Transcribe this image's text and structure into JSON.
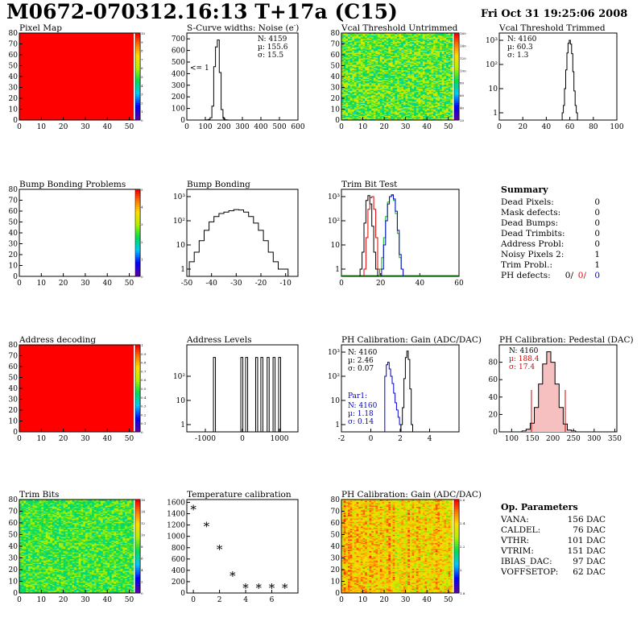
{
  "header": {
    "title": "M0672-070312.16:13 T+17a (C15)",
    "date": "Fri Oct 31 19:25:06 2008"
  },
  "colors": {
    "frame": "#000000",
    "pixelmap_fill": "#ff0000",
    "trim_black": "#000000",
    "trim_red": "#dd0000",
    "trim_green": "#00bb00",
    "trim_blue": "#0000cc",
    "stat_red": "#dd0000",
    "stat_blue": "#0000cc"
  },
  "panels": {
    "pixel_map": {
      "title": "Pixel Map",
      "x_ticks": [
        "0",
        "10",
        "20",
        "30",
        "40",
        "50"
      ],
      "y_ticks": [
        "0",
        "10",
        "20",
        "30",
        "40",
        "50",
        "60",
        "70",
        "80"
      ],
      "z_ticks": [
        "0",
        "1",
        "2",
        "3",
        "4",
        "5",
        "6",
        "7",
        "8",
        "9",
        "10"
      ]
    },
    "noise": {
      "title": "S-Curve widths: Noise (e",
      "title_sup": "-",
      "title_end": ")",
      "x_ticks": [
        "0",
        "100",
        "200",
        "300",
        "400",
        "500",
        "600"
      ],
      "y_ticks": [
        "0",
        "100",
        "200",
        "300",
        "400",
        "500",
        "600",
        "700"
      ],
      "stats": [
        "N: 4159",
        "µ: 155.6",
        "σ: 15.5"
      ],
      "note": "<= 1"
    },
    "vcal_untrimmed": {
      "title": "Vcal Threshold Untrimmed",
      "x_ticks": [
        "0",
        "10",
        "20",
        "30",
        "40",
        "50"
      ],
      "y_ticks": [
        "0",
        "10",
        "20",
        "30",
        "40",
        "50",
        "60",
        "70",
        "80"
      ],
      "z_ticks": [
        "20",
        "40",
        "60",
        "80",
        "100",
        "120",
        "140",
        "160"
      ]
    },
    "vcal_trimmed": {
      "title": "Vcal Threshold Trimmed",
      "x_ticks": [
        "0",
        "20",
        "40",
        "60",
        "80",
        "100"
      ],
      "y_ticks": [
        "1",
        "10",
        "10²",
        "10³"
      ],
      "stats": [
        "N: 4160",
        "µ: 60.3",
        "σ:  1.3"
      ]
    },
    "bump_problems": {
      "title": "Bump Bonding Problems",
      "x_ticks": [
        "0",
        "10",
        "20",
        "30",
        "40",
        "50"
      ],
      "y_ticks": [
        "0",
        "10",
        "20",
        "30",
        "40",
        "50",
        "60",
        "70",
        "80"
      ],
      "z_ticks": [
        "0",
        "1",
        "2",
        "3",
        "4",
        "5"
      ]
    },
    "bump_bonding": {
      "title": "Bump Bonding",
      "x_ticks": [
        "-50",
        "-40",
        "-30",
        "-20",
        "-10"
      ],
      "y_ticks": [
        "1",
        "10",
        "10²",
        "10³"
      ]
    },
    "trim_bit": {
      "title": "Trim Bit Test",
      "x_ticks": [
        "0",
        "20",
        "40",
        "60"
      ],
      "y_ticks": [
        "1",
        "10",
        "10²",
        "10³"
      ]
    },
    "summary": {
      "title": "Summary",
      "rows": [
        {
          "label": "Dead Pixels:",
          "value": "0"
        },
        {
          "label": "Mask defects:",
          "value": "0"
        },
        {
          "label": "Dead Bumps:",
          "value": "0"
        },
        {
          "label": "Dead Trimbits:",
          "value": "0"
        },
        {
          "label": "Address Probl:",
          "value": "0"
        },
        {
          "label": "Noisy Pixels 2:",
          "value": "1"
        },
        {
          "label": "Trim Probl.:",
          "value": "1"
        }
      ],
      "ph_label": "PH defects:",
      "ph_values": [
        "0/",
        "0/",
        "0"
      ]
    },
    "address_decoding": {
      "title": "Address decoding",
      "x_ticks": [
        "0",
        "10",
        "20",
        "30",
        "40",
        "50"
      ],
      "y_ticks": [
        "0",
        "10",
        "20",
        "30",
        "40",
        "50",
        "60",
        "70",
        "80"
      ],
      "z_ticks": [
        "0",
        "0.1",
        "0.2",
        "0.3",
        "0.4",
        "0.5",
        "0.6",
        "0.7",
        "0.8",
        "0.9",
        "1"
      ]
    },
    "address_levels": {
      "title": "Address Levels",
      "x_ticks": [
        "-1000",
        "0",
        "1000"
      ],
      "y_ticks": [
        "1",
        "10",
        "10²"
      ]
    },
    "ph_gain": {
      "title": "PH Calibration: Gain (ADC/DAC)",
      "x_ticks": [
        "-2",
        "0",
        "2",
        "4"
      ],
      "y_ticks": [
        "1",
        "10",
        "10²",
        "10³"
      ],
      "stats": [
        "N: 4160",
        "µ: 2.46",
        "σ: 0.07"
      ],
      "par_label": "Par1:",
      "par_stats": [
        "N: 4160",
        "µ: 1.18",
        "σ: 0.14"
      ]
    },
    "ph_pedestal": {
      "title": "PH Calibration: Pedestal (DAC)",
      "x_ticks": [
        "100",
        "150",
        "200",
        "250",
        "300",
        "350"
      ],
      "y_ticks": [
        "0",
        "20",
        "40",
        "60",
        "80"
      ],
      "stats": [
        "N: 4160",
        "µ: 188.4",
        "σ: 17.4"
      ]
    },
    "trim_bits": {
      "title": "Trim Bits",
      "x_ticks": [
        "0",
        "10",
        "20",
        "30",
        "40",
        "50"
      ],
      "y_ticks": [
        "0",
        "10",
        "20",
        "30",
        "40",
        "50",
        "60",
        "70",
        "80"
      ],
      "z_ticks": [
        "0",
        "2",
        "4",
        "6",
        "8",
        "10",
        "12",
        "14",
        "16"
      ]
    },
    "temperature": {
      "title": "Temperature calibration",
      "x_ticks": [
        "0",
        "2",
        "4",
        "6"
      ],
      "y_ticks": [
        "0",
        "200",
        "400",
        "600",
        "800",
        "1000",
        "1200",
        "1400",
        "1600"
      ]
    },
    "ph_gain_map": {
      "title": "PH Calibration: Gain (ADC/DAC)",
      "x_ticks": [
        "0",
        "10",
        "20",
        "30",
        "40",
        "50"
      ],
      "y_ticks": [
        "0",
        "10",
        "20",
        "30",
        "40",
        "50",
        "60",
        "70",
        "80"
      ],
      "z_ticks": [
        "1.8",
        "2",
        "2.2",
        "2.4",
        "2.6"
      ]
    },
    "op_params": {
      "title": "Op. Parameters",
      "rows": [
        {
          "label": "VANA:",
          "value": "156 DAC"
        },
        {
          "label": "CALDEL:",
          "value": "76 DAC"
        },
        {
          "label": "VTHR:",
          "value": "101 DAC"
        },
        {
          "label": "VTRIM:",
          "value": "151 DAC"
        },
        {
          "label": "IBIAS_DAC:",
          "value": "97 DAC"
        },
        {
          "label": "VOFFSETOP:",
          "value": "62 DAC"
        }
      ]
    }
  },
  "chart_data": [
    {
      "type": "heatmap",
      "panel": "pixel_map",
      "title": "Pixel Map",
      "xlim": [
        0,
        52
      ],
      "ylim": [
        0,
        80
      ],
      "zlim": [
        0,
        10
      ],
      "uniform_value": 10
    },
    {
      "type": "bar",
      "panel": "noise",
      "title": "S-Curve widths: Noise (e-)",
      "xlim": [
        0,
        600
      ],
      "ylim": [
        0,
        750
      ],
      "bins_x": [
        100,
        110,
        120,
        130,
        140,
        150,
        160,
        170,
        180,
        190,
        200,
        210,
        220,
        230
      ],
      "values": [
        0,
        2,
        5,
        20,
        120,
        460,
        630,
        690,
        410,
        90,
        15,
        3,
        1,
        0
      ]
    },
    {
      "type": "heatmap",
      "panel": "vcal_untrimmed",
      "title": "Vcal Threshold Untrimmed",
      "xlim": [
        0,
        52
      ],
      "ylim": [
        0,
        80
      ],
      "zlim": [
        0,
        170
      ],
      "typical_range": [
        60,
        120
      ]
    },
    {
      "type": "bar",
      "panel": "vcal_trimmed",
      "title": "Vcal Threshold Trimmed",
      "log_y": true,
      "xlim": [
        0,
        100
      ],
      "ylim": [
        0.5,
        2000
      ],
      "bins_x": [
        54,
        55,
        56,
        57,
        58,
        59,
        60,
        61,
        62,
        63,
        64,
        65,
        66,
        72,
        73
      ],
      "values": [
        1,
        2,
        10,
        60,
        300,
        750,
        1000,
        700,
        280,
        50,
        8,
        2,
        1,
        1,
        1
      ]
    },
    {
      "type": "heatmap",
      "panel": "bump_problems",
      "title": "Bump Bonding Problems",
      "xlim": [
        0,
        52
      ],
      "ylim": [
        0,
        80
      ],
      "zlim": [
        0,
        5
      ],
      "uniform_value": 0
    },
    {
      "type": "bar",
      "panel": "bump_bonding",
      "title": "Bump Bonding",
      "log_y": true,
      "xlim": [
        -50,
        -5
      ],
      "ylim": [
        0.5,
        2000
      ],
      "bins_x": [
        -48,
        -46,
        -44,
        -42,
        -40,
        -38,
        -36,
        -34,
        -32,
        -30,
        -28,
        -26,
        -24,
        -22,
        -20,
        -18,
        -16,
        -14,
        -12,
        -10
      ],
      "values": [
        2,
        5,
        15,
        40,
        90,
        150,
        200,
        230,
        260,
        290,
        280,
        230,
        150,
        80,
        40,
        15,
        5,
        2,
        1,
        1
      ]
    },
    {
      "type": "line",
      "panel": "trim_bit",
      "title": "Trim Bit Test",
      "log_y": true,
      "xlim": [
        0,
        60
      ],
      "ylim": [
        0.5,
        2000
      ],
      "series": [
        {
          "color_key": "trim_black",
          "x": [
            10,
            11,
            12,
            13,
            14,
            15,
            16,
            17,
            18
          ],
          "values": [
            1,
            5,
            80,
            700,
            1100,
            500,
            60,
            5,
            1
          ]
        },
        {
          "color_key": "trim_red",
          "x": [
            12,
            13,
            14,
            15,
            16,
            17,
            18,
            19
          ],
          "values": [
            1,
            20,
            300,
            900,
            1000,
            300,
            20,
            1
          ]
        },
        {
          "color_key": "trim_green",
          "x": [
            20,
            21,
            22,
            23,
            24,
            25,
            26,
            27,
            28,
            29,
            30,
            31
          ],
          "values": [
            1,
            3,
            20,
            150,
            600,
            1000,
            1100,
            700,
            200,
            30,
            3,
            1
          ]
        },
        {
          "color_key": "trim_blue",
          "x": [
            21,
            22,
            23,
            24,
            25,
            26,
            27,
            28,
            29,
            30,
            31
          ],
          "values": [
            1,
            10,
            100,
            500,
            1000,
            1200,
            800,
            250,
            40,
            4,
            1
          ]
        }
      ]
    },
    {
      "type": "heatmap",
      "panel": "address_decoding",
      "title": "Address decoding",
      "xlim": [
        0,
        52
      ],
      "ylim": [
        0,
        80
      ],
      "zlim": [
        0,
        1
      ],
      "uniform_value": 1
    },
    {
      "type": "bar",
      "panel": "address_levels",
      "title": "Address Levels",
      "log_y": true,
      "xlim": [
        -1500,
        1500
      ],
      "ylim": [
        0.5,
        2000
      ],
      "peaks_x": [
        -760,
        -20,
        110,
        380,
        520,
        690,
        850,
        1000
      ],
      "values": [
        600,
        600,
        600,
        600,
        600,
        600,
        600,
        600
      ]
    },
    {
      "type": "line",
      "panel": "ph_gain",
      "title": "PH Calibration: Gain (ADC/DAC)",
      "log_y": true,
      "xlim": [
        -2,
        6
      ],
      "ylim": [
        0.5,
        2000
      ],
      "series": [
        {
          "name": "Par1:",
          "color_key": "stat_blue",
          "x": [
            1.0,
            1.1,
            1.2,
            1.3,
            1.4,
            1.5,
            1.6,
            1.7,
            1.8,
            1.9,
            2.0
          ],
          "values": [
            100,
            300,
            380,
            200,
            100,
            50,
            20,
            8,
            4,
            2,
            1
          ]
        },
        {
          "color_key": "trim_black",
          "x": [
            2.1,
            2.2,
            2.3,
            2.4,
            2.5,
            2.6,
            2.7,
            2.8
          ],
          "values": [
            1,
            5,
            80,
            600,
            1100,
            500,
            30,
            1
          ]
        }
      ]
    },
    {
      "type": "bar",
      "panel": "ph_pedestal",
      "title": "PH Calibration: Pedestal (DAC)",
      "xlim": [
        70,
        355
      ],
      "ylim": [
        0,
        100
      ],
      "bins_x": [
        130,
        140,
        150,
        160,
        170,
        180,
        190,
        200,
        210,
        220,
        230,
        240,
        250
      ],
      "values": [
        1,
        3,
        10,
        28,
        55,
        78,
        92,
        80,
        55,
        28,
        9,
        2,
        1
      ],
      "markers_x": [
        148,
        230
      ]
    },
    {
      "type": "heatmap",
      "panel": "trim_bits",
      "title": "Trim Bits",
      "xlim": [
        0,
        52
      ],
      "ylim": [
        0,
        80
      ],
      "zlim": [
        0,
        16
      ],
      "typical_range": [
        6,
        10
      ]
    },
    {
      "type": "scatter",
      "panel": "temperature",
      "title": "Temperature calibration",
      "xlim": [
        -0.5,
        8
      ],
      "ylim": [
        0,
        1650
      ],
      "x": [
        0,
        1,
        2,
        3,
        4,
        5,
        6,
        7
      ],
      "y": [
        1470,
        1170,
        770,
        300,
        85,
        85,
        85,
        85
      ]
    },
    {
      "type": "heatmap",
      "panel": "ph_gain_map",
      "title": "PH Calibration: Gain (ADC/DAC)",
      "xlim": [
        0,
        52
      ],
      "ylim": [
        0,
        80
      ],
      "zlim": [
        1.7,
        2.7
      ],
      "typical_range": [
        2.3,
        2.6
      ]
    }
  ]
}
